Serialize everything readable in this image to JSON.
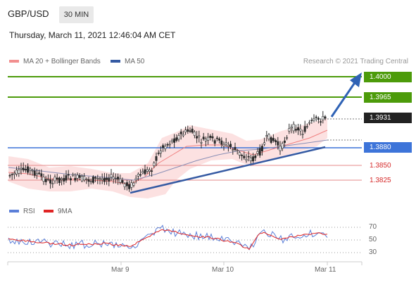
{
  "header": {
    "symbol": "GBP/USD",
    "timeframe": "30 MIN",
    "datetime": "Thursday, March 11, 2021 12:46:04 AM CET"
  },
  "legend": {
    "ma20": "MA 20 + Bollinger Bands",
    "ma50": "MA 50",
    "copyright": "Research © 2021 Trading Central"
  },
  "levels": {
    "target2": "1.4000",
    "target1": "1.3965",
    "current": "1.3931",
    "pivot": "1.3880",
    "support1": "1.3850",
    "support2": "1.3825"
  },
  "rsi_legend": {
    "rsi": "RSI",
    "ma": "9MA"
  },
  "rsi_ticks": [
    "70",
    "50",
    "30"
  ],
  "xaxis": [
    "Mar 9",
    "Mar 10",
    "Mar 11"
  ],
  "colors": {
    "green": "#4c9b0a",
    "blue": "#3d74d9",
    "red": "#d62b2b",
    "candle": "#2b2b2b",
    "band": "#fbd5d5",
    "trendline": "#355aa3"
  },
  "chart_data": {
    "type": "candlestick",
    "price_levels": [
      1.4,
      1.3965,
      1.3931,
      1.388,
      1.385,
      1.3825
    ],
    "x_ticks": [
      "Mar 9",
      "Mar 10",
      "Mar 11"
    ],
    "rsi_levels": [
      70,
      50,
      30
    ]
  }
}
